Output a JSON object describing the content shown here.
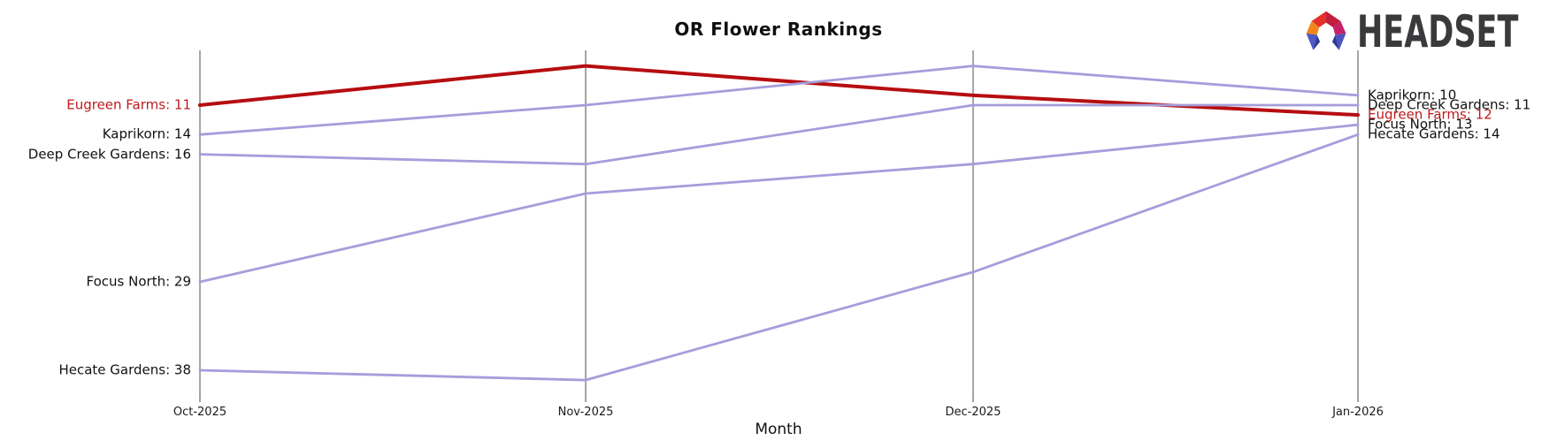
{
  "title": "OR Flower Rankings",
  "logo": {
    "text": "HEADSET"
  },
  "chart_data": {
    "type": "line",
    "subtype": "bump-ranking-chart",
    "title": "OR Flower Rankings",
    "xlabel": "Month",
    "x": [
      "Oct-2025",
      "Nov-2025",
      "Dec-2025",
      "Jan-2026"
    ],
    "y_axis": "rank (1 = best, axis inverted, no visible y ticks)",
    "legend_position": "inline-edge-labels",
    "grid": "vertical-month-axes-only",
    "axis_color": "#a6a6a6",
    "series": [
      {
        "name": "Eugreen Farms",
        "values": [
          11,
          7,
          10,
          12
        ],
        "color": "#b60d10",
        "label_color": "#bc1b1d",
        "width": 4,
        "start_label": "Eugreen Farms: 11",
        "end_label": "Eugreen Farms: 12"
      },
      {
        "name": "Kaprikorn",
        "values": [
          14,
          11,
          7,
          10
        ],
        "color": "#a49edb",
        "label_color": "#111111",
        "width": 2.8,
        "start_label": "Kaprikorn: 14",
        "end_label": "Kaprikorn: 10"
      },
      {
        "name": "Deep Creek Gardens",
        "values": [
          16,
          17,
          11,
          11
        ],
        "color": "#a49edb",
        "label_color": "#111111",
        "width": 2.8,
        "start_label": "Deep Creek Gardens: 16",
        "end_label": "Deep Creek Gardens: 11"
      },
      {
        "name": "Focus North",
        "values": [
          29,
          20,
          17,
          13
        ],
        "color": "#a49edb",
        "label_color": "#111111",
        "width": 2.8,
        "start_label": "Focus North: 29",
        "end_label": "Focus North: 13"
      },
      {
        "name": "Hecate Gardens",
        "values": [
          38,
          39,
          28,
          14
        ],
        "color": "#a49edb",
        "label_color": "#111111",
        "width": 2.8,
        "start_label": "Hecate Gardens: 38",
        "end_label": "Hecate Gardens: 14"
      }
    ]
  }
}
